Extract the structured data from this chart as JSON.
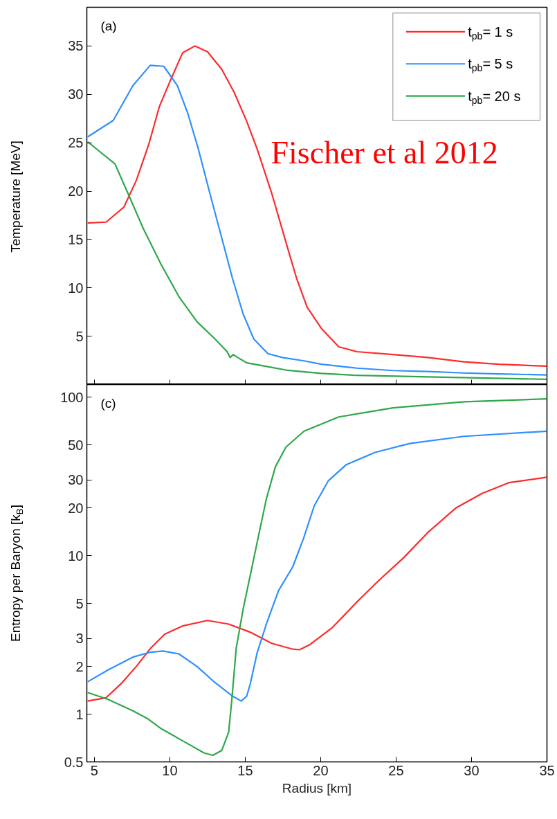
{
  "chart_data": [
    {
      "type": "line",
      "ylabel": "Temperature [MeV]",
      "xlim": [
        4.5,
        35
      ],
      "xticks": [
        5,
        10,
        15,
        20,
        25,
        30,
        35
      ],
      "ylim": [
        0,
        39
      ],
      "yticks": [
        5,
        10,
        15,
        20,
        25,
        30,
        35
      ],
      "tick_labels": "y",
      "grid": false,
      "legend": "top right",
      "annotations": [
        "(a)",
        "Fischer et al 2012"
      ],
      "series": [
        {
          "name": "t$_{pb}$= 1 s",
          "color": "#ff2a2a",
          "x": [
            4.55,
            5.78,
            6.96,
            7.78,
            8.6,
            9.3,
            10.0,
            10.85,
            11.67,
            12.5,
            13.44,
            14.27,
            15.1,
            15.8,
            16.75,
            17.7,
            18.4,
            19.1,
            20.05,
            21.2,
            22.4,
            24.8,
            27.1,
            29.5,
            31.8,
            35
          ],
          "values": [
            16.7,
            16.8,
            18.35,
            21.1,
            24.8,
            28.7,
            31.3,
            34.3,
            35,
            34.4,
            32.6,
            30.2,
            27.2,
            24.3,
            19.8,
            14.7,
            11,
            8,
            5.8,
            3.9,
            3.4,
            3.1,
            2.8,
            2.35,
            2.1,
            1.9
          ]
        },
        {
          "name": "t$_{pb}$= 5 s",
          "color": "#2f8fff",
          "x": [
            4.55,
            6.25,
            7.55,
            8.7,
            9.6,
            10.5,
            11.2,
            11.9,
            12.7,
            13.4,
            14.15,
            14.86,
            15.57,
            16.5,
            17.45,
            18.9,
            20.05,
            22.4,
            24.8,
            27.1,
            29.5,
            31.8,
            35
          ],
          "values": [
            25.6,
            27.3,
            30.9,
            33,
            32.9,
            30.9,
            28,
            24.3,
            19.5,
            15.4,
            11,
            7.3,
            4.7,
            3.2,
            2.8,
            2.45,
            2.1,
            1.7,
            1.45,
            1.35,
            1.2,
            1.1,
            1.0
          ]
        },
        {
          "name": "t$_{pb}$= 20 s",
          "color": "#2ea84a",
          "x": [
            4.55,
            6.37,
            7.3,
            8.25,
            9.43,
            10.6,
            11.8,
            13.0,
            13.8,
            14.0,
            14.2,
            14.5,
            15.1,
            16.3,
            17.7,
            20.05,
            22.4,
            27.1,
            35
          ],
          "values": [
            25.1,
            22.8,
            19.5,
            16.1,
            12.4,
            9.1,
            6.5,
            4.7,
            3.4,
            2.8,
            3.1,
            2.8,
            2.25,
            1.9,
            1.5,
            1.15,
            0.95,
            0.8,
            0.55
          ]
        }
      ]
    },
    {
      "type": "line",
      "xlabel": "Radius [km]",
      "ylabel": "Entropy per Baryon [k$_{B}$]",
      "log": "y",
      "xlim": [
        4.5,
        35
      ],
      "xticks": [
        5,
        10,
        15,
        20,
        25,
        30,
        35
      ],
      "ylim": [
        0.5,
        120
      ],
      "yticks": [
        0.5,
        1,
        2,
        3,
        5,
        10,
        20,
        30,
        50,
        100
      ],
      "grid": false,
      "annotations": [
        "(c)"
      ],
      "series": [
        {
          "color": "#ff2a2a",
          "x": [
            4.55,
            5.78,
            6.84,
            7.78,
            8.72,
            9.67,
            10.85,
            12.5,
            13.9,
            15.3,
            16.75,
            18.15,
            18.6,
            19.3,
            20.75,
            22.4,
            23.8,
            25.5,
            27.1,
            29.0,
            30.7,
            32.5,
            35
          ],
          "values": [
            1.21,
            1.27,
            1.58,
            2.0,
            2.6,
            3.2,
            3.6,
            3.9,
            3.7,
            3.3,
            2.8,
            2.57,
            2.55,
            2.75,
            3.5,
            5.1,
            6.9,
            9.7,
            14,
            20.1,
            24.7,
            28.9,
            31.2
          ]
        },
        {
          "color": "#2f8fff",
          "x": [
            4.55,
            5.9,
            7.55,
            8.72,
            9.55,
            10.6,
            11.8,
            12.97,
            14.15,
            14.74,
            15.1,
            15.33,
            15.8,
            16.4,
            17.2,
            18.15,
            18.87,
            19.57,
            20.5,
            21.7,
            23.6,
            25.9,
            29.5,
            35
          ],
          "values": [
            1.6,
            1.9,
            2.29,
            2.46,
            2.5,
            2.4,
            2.0,
            1.59,
            1.3,
            1.21,
            1.3,
            1.55,
            2.46,
            3.7,
            6,
            8.5,
            12.9,
            20.6,
            29.6,
            37.5,
            44.8,
            51,
            56.6,
            61
          ]
        },
        {
          "color": "#2ea84a",
          "x": [
            4.55,
            5.9,
            7.55,
            8.5,
            9.43,
            11.08,
            12.26,
            12.85,
            13.44,
            13.9,
            14.1,
            14.4,
            14.86,
            15.33,
            15.9,
            16.4,
            17.0,
            17.7,
            18.9,
            21.2,
            24.8,
            29.5,
            35
          ],
          "values": [
            1.37,
            1.24,
            1.05,
            0.94,
            0.81,
            0.66,
            0.57,
            0.55,
            0.59,
            0.77,
            1.2,
            2.6,
            4.6,
            7.5,
            13.6,
            22.8,
            36.4,
            48.4,
            61,
            75,
            85.6,
            93.5,
            97.5
          ]
        }
      ]
    }
  ]
}
